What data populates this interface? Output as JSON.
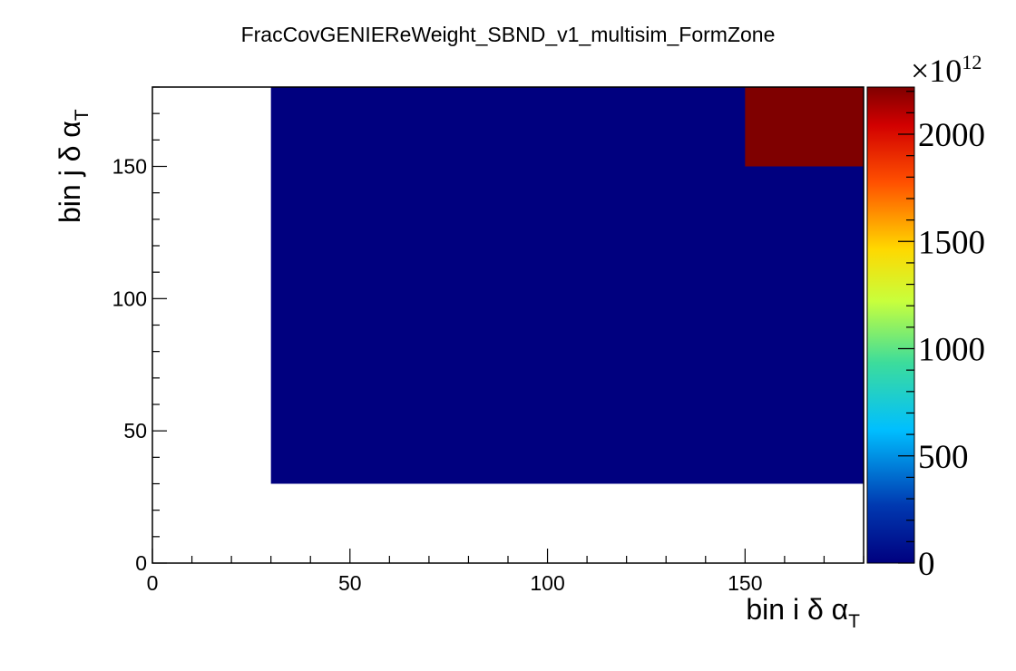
{
  "chart_data": {
    "type": "heatmap",
    "title": "FracCovGENIEReWeight_SBND_v1_multisim_FormZone",
    "xlabel": {
      "main": "bin i δ α",
      "sub": "T"
    },
    "ylabel": {
      "main": "bin j δ α",
      "sub": "T"
    },
    "xlim": [
      0,
      180
    ],
    "ylim": [
      0,
      180
    ],
    "x_ticks": [
      0,
      50,
      100,
      150
    ],
    "y_ticks": [
      0,
      50,
      100,
      150
    ],
    "z_range": [
      0,
      2220
    ],
    "z_ticks": [
      0,
      500,
      1000,
      1500,
      2000
    ],
    "z_multiplier": {
      "base": "×10",
      "exponent": "12"
    },
    "colormap": "rainbow",
    "grid": false,
    "regions": [
      {
        "x": [
          30,
          180
        ],
        "y": [
          30,
          180
        ],
        "z": 0
      },
      {
        "x": [
          150,
          180
        ],
        "y": [
          150,
          180
        ],
        "z": 2220
      }
    ]
  }
}
